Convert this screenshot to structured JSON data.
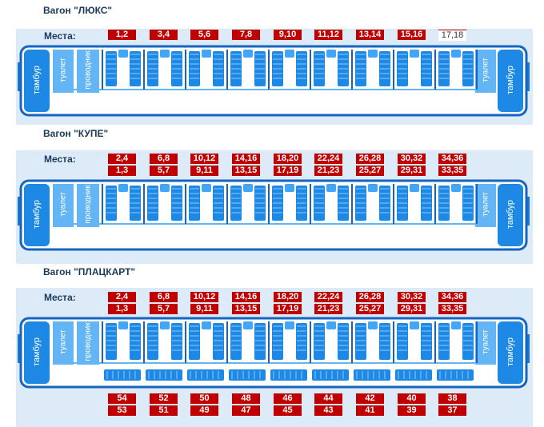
{
  "sections": [
    {
      "title": "Вагон \"ЛЮКС\"",
      "places_label": "Места:",
      "top_row": [
        "1,2",
        "3,4",
        "5,6",
        "7,8",
        "9,10",
        "11,12",
        "13,14",
        "15,16",
        "17,18"
      ],
      "bottom_row": [],
      "side_upper": [],
      "side_lower": []
    },
    {
      "title": "Вагон \"КУПЕ\"",
      "places_label": "Места:",
      "top_row": [
        "2,4",
        "6,8",
        "10,12",
        "14,16",
        "18,20",
        "22,24",
        "26,28",
        "30,32",
        "34,36"
      ],
      "bottom_row": [
        "1,3",
        "5,7",
        "9,11",
        "13,15",
        "17,19",
        "21,23",
        "25,27",
        "29,31",
        "33,35"
      ],
      "side_upper": [],
      "side_lower": []
    },
    {
      "title": "Вагон \"ПЛАЦКАРТ\"",
      "places_label": "Места:",
      "top_row": [
        "2,4",
        "6,8",
        "10,12",
        "14,16",
        "18,20",
        "22,24",
        "26,28",
        "30,32",
        "34,36"
      ],
      "bottom_row": [
        "1,3",
        "5,7",
        "9,11",
        "13,15",
        "17,19",
        "21,23",
        "25,27",
        "29,31",
        "33,35"
      ],
      "side_upper": [
        "54",
        "52",
        "50",
        "48",
        "46",
        "44",
        "42",
        "40",
        "38"
      ],
      "side_lower": [
        "53",
        "51",
        "49",
        "47",
        "45",
        "43",
        "41",
        "39",
        "37"
      ]
    }
  ],
  "car_labels": {
    "tambur": "тамбур",
    "toilet": "туалет",
    "conductor": "проводник"
  },
  "colors": {
    "seat_bg": "#c00000",
    "car_body": "#1565c0",
    "berth": "#1e88e5",
    "band": "#dcebf7"
  }
}
